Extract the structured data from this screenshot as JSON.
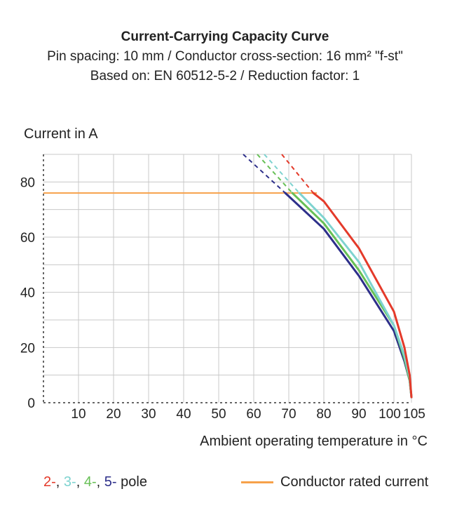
{
  "colors": {
    "pole2": "#e43a2a",
    "pole3": "#7ed3d0",
    "pole4": "#67c056",
    "pole5": "#2d2f8a",
    "rated": "#f7a14a",
    "grid": "#c8c8c8",
    "axis": "#333333"
  },
  "chart_data": {
    "type": "line",
    "title": "Current-Carrying Capacity Curve",
    "subtitle_1": "Pin spacing: 10 mm / Conductor cross-section: 16 mm² \"f-st\"",
    "subtitle_2": "Based on: EN 60512-5-2 / Reduction factor: 1",
    "xlabel": "Ambient operating temperature in °C",
    "ylabel": "Current in A",
    "xlim": [
      0,
      105
    ],
    "ylim": [
      0,
      90
    ],
    "xticks": [
      10,
      20,
      30,
      40,
      50,
      60,
      70,
      80,
      90,
      100,
      105
    ],
    "yticks": [
      0,
      20,
      40,
      60,
      80
    ],
    "grid": true,
    "rated_current": 76,
    "legend_poles": {
      "p2": "2-",
      "p3": "3-",
      "p4": "4-",
      "p5": "5-",
      "suffix": "pole",
      "sep": ", "
    },
    "legend_rated": "Conductor rated current",
    "series": [
      {
        "key": "pole2",
        "solid": [
          [
            77,
            76
          ],
          [
            80,
            73
          ],
          [
            90,
            56
          ],
          [
            100,
            33
          ],
          [
            103,
            20
          ],
          [
            104.5,
            10
          ],
          [
            105,
            2
          ]
        ],
        "dashed": [
          [
            68,
            90
          ],
          [
            77,
            76
          ]
        ]
      },
      {
        "key": "pole3",
        "solid": [
          [
            73,
            76
          ],
          [
            80,
            67
          ],
          [
            90,
            51
          ],
          [
            100,
            28
          ],
          [
            103,
            17
          ],
          [
            104.5,
            9
          ],
          [
            105,
            2
          ]
        ],
        "dashed": [
          [
            63,
            90
          ],
          [
            73,
            76
          ]
        ]
      },
      {
        "key": "pole4",
        "solid": [
          [
            71,
            76
          ],
          [
            80,
            65
          ],
          [
            90,
            48
          ],
          [
            100,
            28
          ],
          [
            103,
            16
          ],
          [
            104.5,
            8
          ],
          [
            105,
            2
          ]
        ],
        "dashed": [
          [
            61,
            90
          ],
          [
            71,
            76
          ]
        ]
      },
      {
        "key": "pole5",
        "solid": [
          [
            69,
            76
          ],
          [
            80,
            63
          ],
          [
            90,
            46
          ],
          [
            100,
            26
          ],
          [
            103,
            15
          ],
          [
            104.5,
            8
          ],
          [
            105,
            2
          ]
        ],
        "dashed": [
          [
            57,
            90
          ],
          [
            69,
            76
          ]
        ]
      }
    ]
  }
}
